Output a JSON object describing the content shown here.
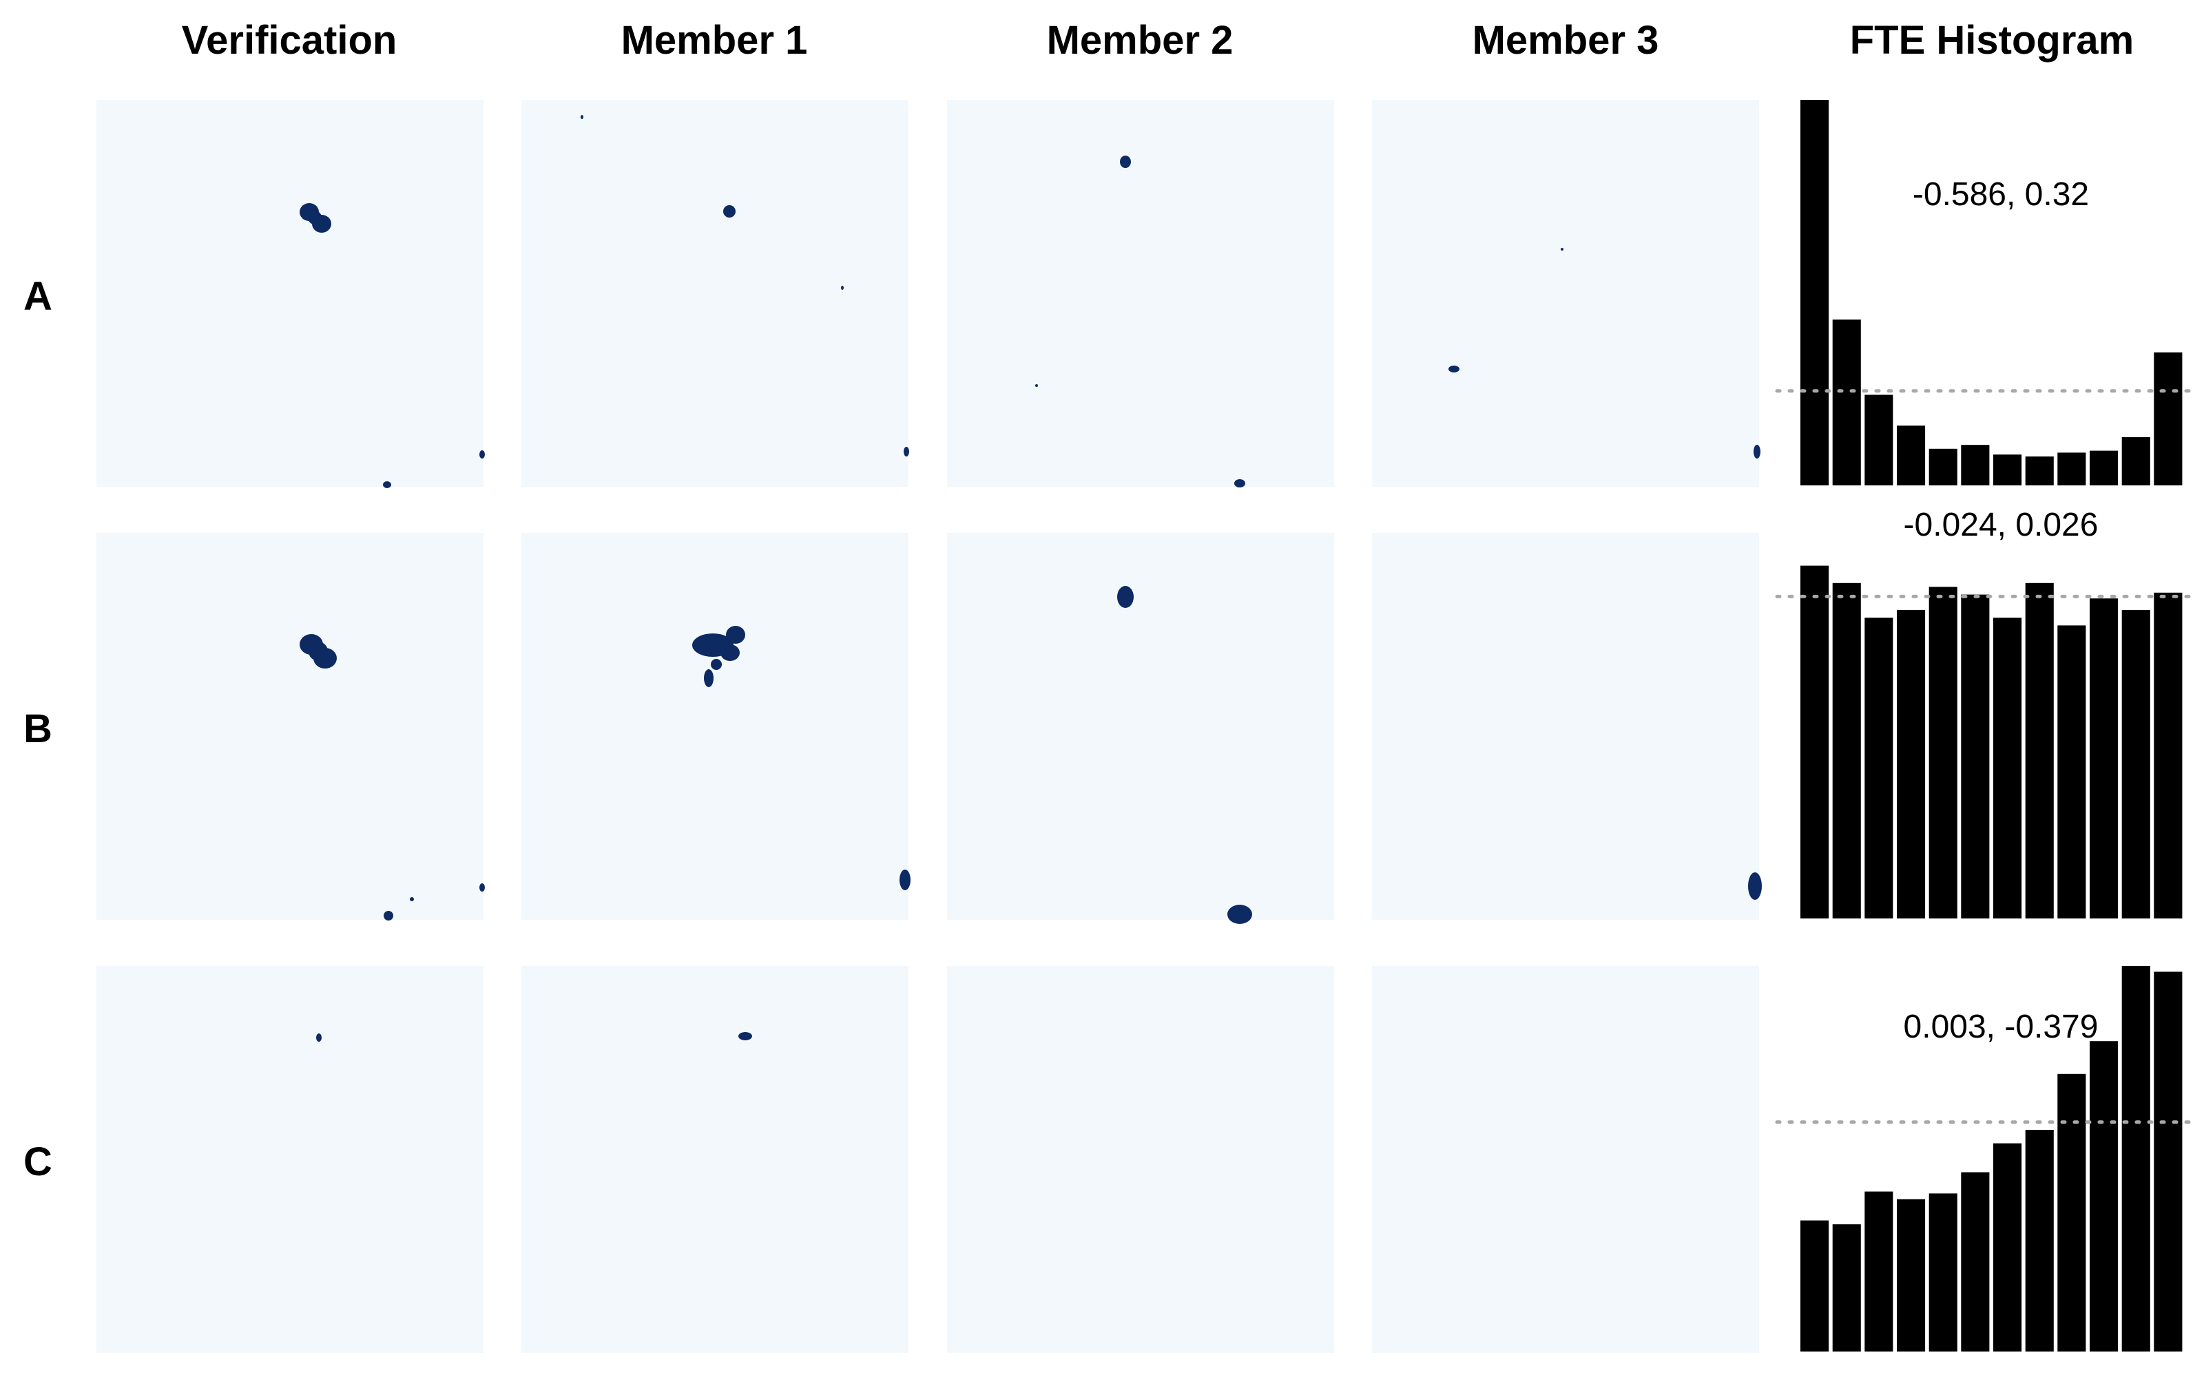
{
  "column_titles": [
    "Verification",
    "Member 1",
    "Member 2",
    "Member 3",
    "FTE Histogram"
  ],
  "row_labels": [
    "A",
    "B",
    "C"
  ],
  "colors": {
    "panel_background": "#f3f8fd",
    "blob": "#0d2a63",
    "bar": "#000000",
    "reference_line": "#a8a8a8"
  },
  "chart_data": {
    "type": "bar",
    "title": "FTE Histogram",
    "ylim": [
      0,
      1
    ],
    "grid": false,
    "reference_line": "dotted",
    "rows": [
      {
        "label": "A",
        "annotation": "-0.586, 0.32",
        "values": [
          1.0,
          0.43,
          0.235,
          0.155,
          0.095,
          0.105,
          0.08,
          0.075,
          0.085,
          0.09,
          0.125,
          0.345
        ],
        "reference": 0.245
      },
      {
        "label": "B",
        "annotation": "-0.024, 0.026",
        "values": [
          0.915,
          0.87,
          0.78,
          0.8,
          0.86,
          0.84,
          0.78,
          0.87,
          0.76,
          0.83,
          0.8,
          0.845
        ],
        "reference": 0.835
      },
      {
        "label": "C",
        "annotation": "0.003, -0.379",
        "values": [
          0.34,
          0.33,
          0.415,
          0.395,
          0.41,
          0.465,
          0.54,
          0.575,
          0.72,
          0.805,
          1.0,
          0.985
        ],
        "reference": 0.595
      }
    ]
  }
}
